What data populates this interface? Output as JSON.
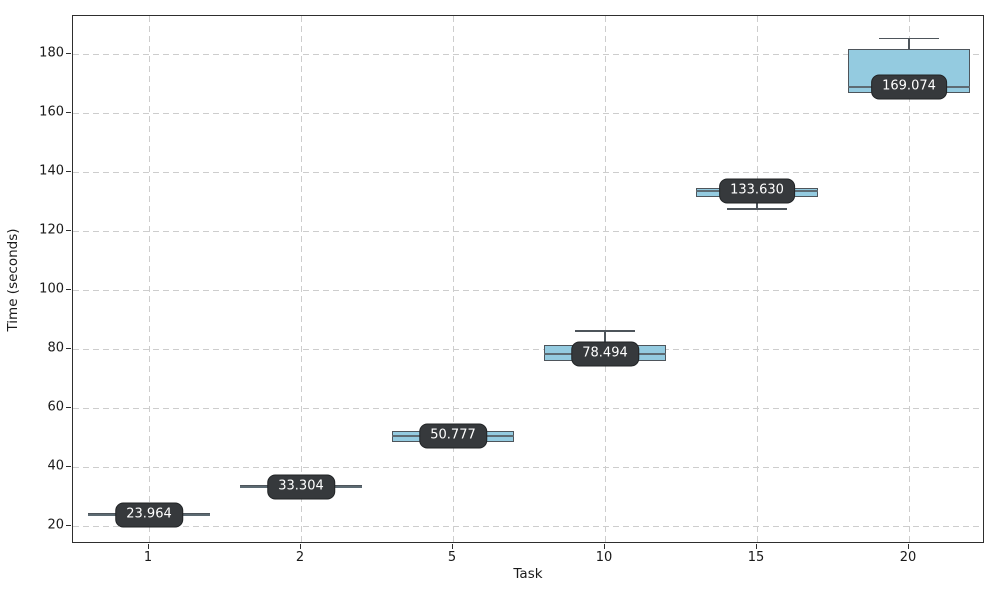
{
  "figure": {
    "background": "#ffffff"
  },
  "chart_data": {
    "type": "boxplot",
    "title": "",
    "xlabel": "Task",
    "ylabel": "Time (seconds)",
    "categories": [
      "1",
      "2",
      "5",
      "10",
      "15",
      "20"
    ],
    "ylim": [
      14,
      193
    ],
    "yticks": [
      20,
      40,
      60,
      80,
      100,
      120,
      140,
      160,
      180
    ],
    "grid": true,
    "grid_style": "dashed",
    "legend_position": "none",
    "series": [
      {
        "category": "1",
        "whislo": 22.9,
        "q1": 23.4,
        "median": 23.964,
        "q3": 24.45,
        "whishi": 25.0,
        "badge": "23.964"
      },
      {
        "category": "2",
        "whislo": 32.3,
        "q1": 32.85,
        "median": 33.304,
        "q3": 34.1,
        "whishi": 34.6,
        "badge": "33.304"
      },
      {
        "category": "5",
        "whislo": 47.8,
        "q1": 48.6,
        "median": 50.777,
        "q3": 52.4,
        "whishi": 53.2,
        "badge": "50.777"
      },
      {
        "category": "10",
        "whislo": 75.0,
        "q1": 76.1,
        "median": 78.494,
        "q3": 81.3,
        "whishi": 86.2,
        "badge": "78.494"
      },
      {
        "category": "15",
        "whislo": 127.5,
        "q1": 131.5,
        "median": 133.63,
        "q3": 134.8,
        "whishi": 135.0,
        "badge": "133.630"
      },
      {
        "category": "20",
        "whislo": 166.3,
        "q1": 167.0,
        "median": 169.074,
        "q3": 181.7,
        "whishi": 185.3,
        "badge": "169.074"
      }
    ],
    "colors": {
      "box_fill": "#94cbe0",
      "box_edge": "#4e555b",
      "median_line": "#5d6b73",
      "whisker": "#4e555b",
      "badge_bg": "#36393c",
      "badge_border": "#202325",
      "badge_text": "#ffffff",
      "grid": "#cdcdcd",
      "spine": "#2e2e2e",
      "tick_text": "#1a1a1a"
    }
  }
}
